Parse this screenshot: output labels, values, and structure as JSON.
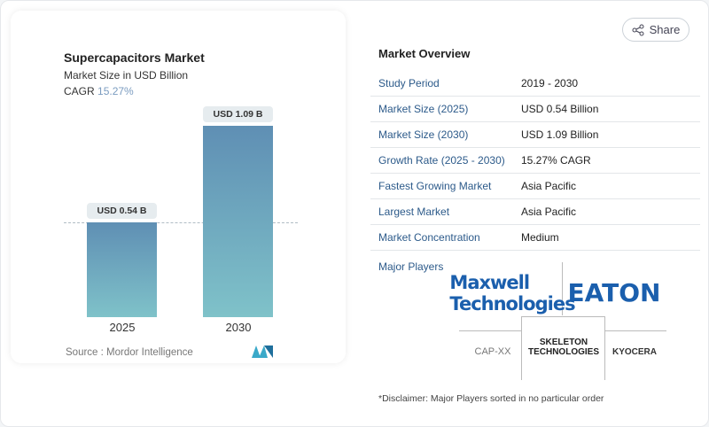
{
  "share": {
    "label": "Share",
    "icon": "share-icon"
  },
  "chart": {
    "title": "Supercapacitors Market",
    "subtitle": "Market Size in USD Billion",
    "cagr_label": "CAGR",
    "cagr_value": "15.27%",
    "source": "Source :  Mordor Intelligence"
  },
  "chart_data": {
    "type": "bar",
    "categories": [
      "2025",
      "2030"
    ],
    "values": [
      0.54,
      1.09
    ],
    "data_labels": [
      "USD 0.54 B",
      "USD 1.09 B"
    ],
    "title": "Supercapacitors Market",
    "ylabel": "Market Size in USD Billion",
    "colors": [
      "#5f8fb4",
      "#7fc2c9"
    ]
  },
  "overview": {
    "heading": "Market Overview",
    "rows": [
      {
        "key": "Study Period",
        "value": "2019 - 2030"
      },
      {
        "key": "Market Size (2025)",
        "value": "USD 0.54 Billion"
      },
      {
        "key": "Market Size (2030)",
        "value": "USD 1.09 Billion"
      },
      {
        "key": "Growth Rate (2025 - 2030)",
        "value": "15.27% CAGR"
      },
      {
        "key": "Fastest Growing Market",
        "value": "Asia Pacific"
      },
      {
        "key": "Largest Market",
        "value": "Asia Pacific"
      },
      {
        "key": "Market Concentration",
        "value": "Medium"
      }
    ],
    "players_label": "Major Players",
    "players": [
      "Maxwell Technologies",
      "EATON",
      "CAP-XX",
      "SKELETON TECHNOLOGIES",
      "KYOCERA"
    ],
    "disclaimer": "*Disclaimer: Major Players sorted in no particular order"
  }
}
